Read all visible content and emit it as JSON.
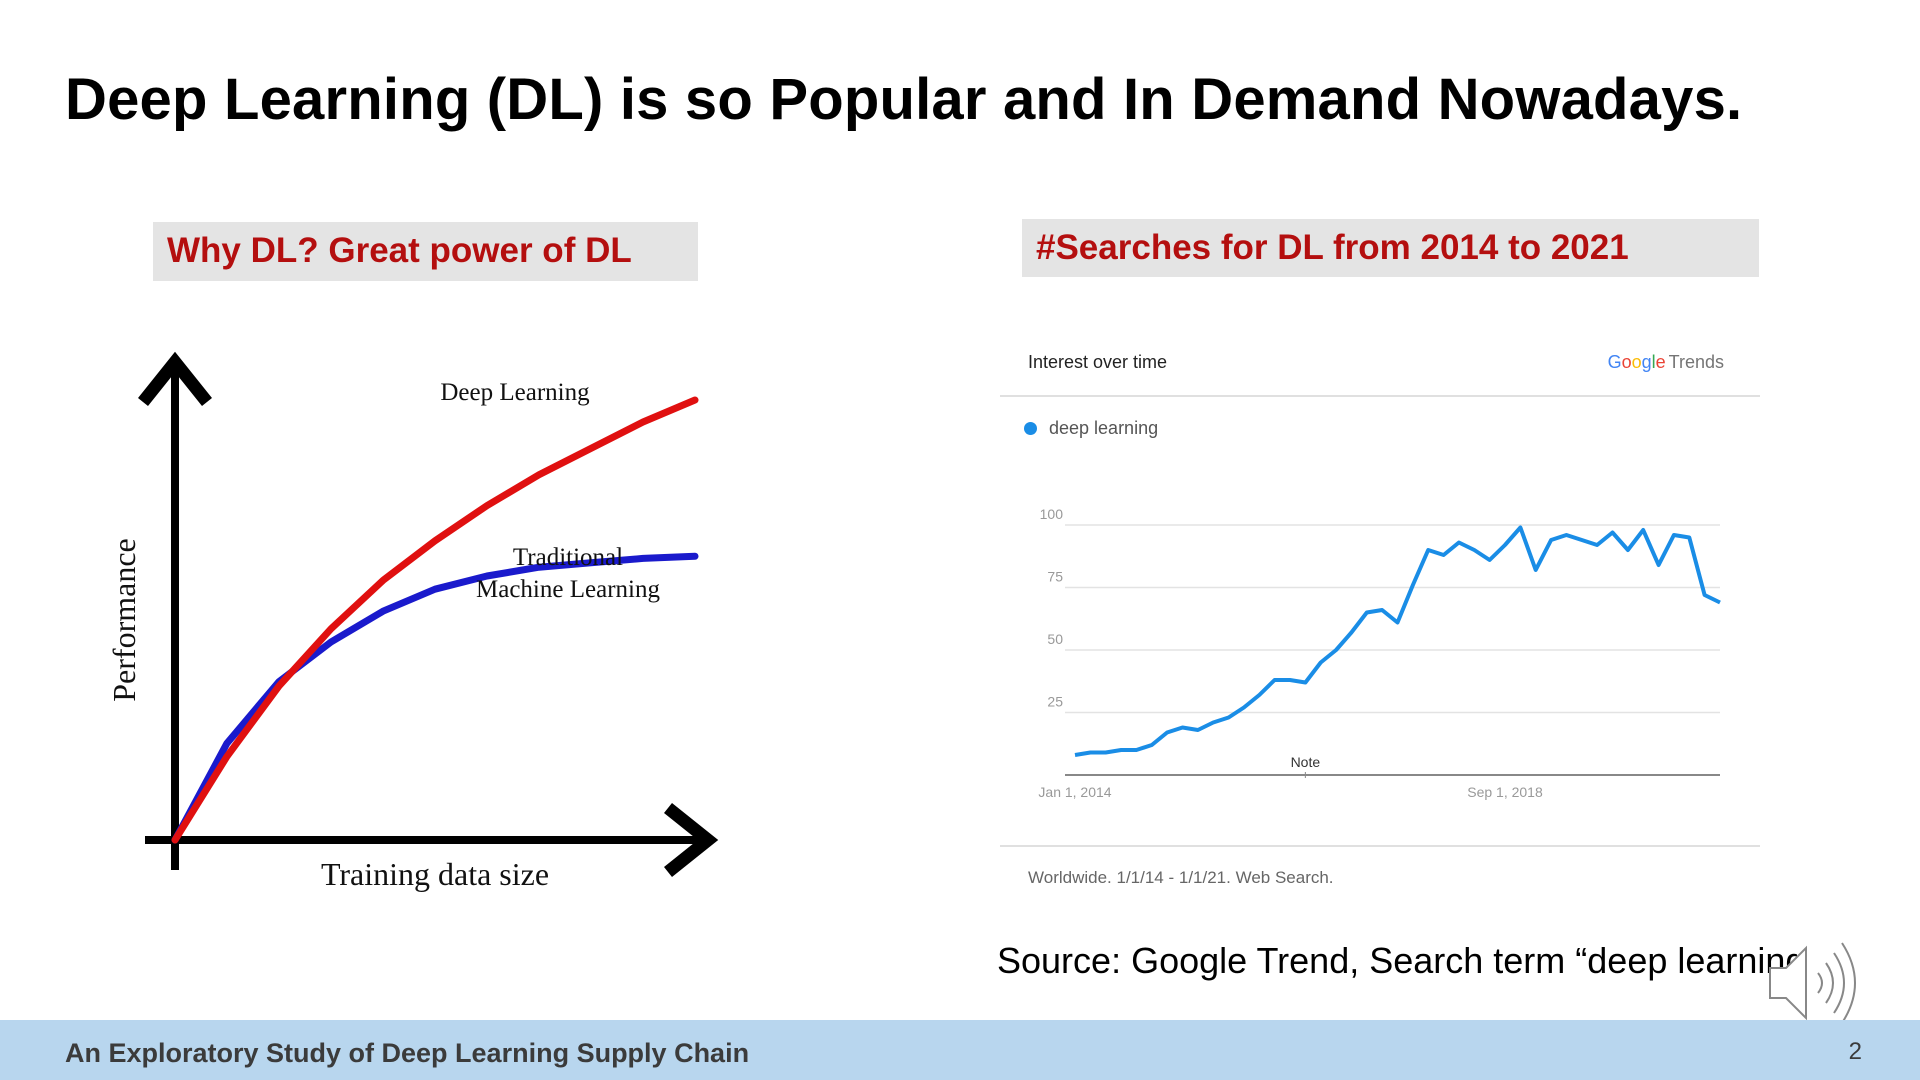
{
  "slide": {
    "title": "Deep Learning (DL) is so Popular and In Demand Nowadays.",
    "footer_title": "An Exploratory Study of Deep Learning Supply Chain",
    "page_number": "2",
    "source": "Source: Google Trend, Search term “deep learning”"
  },
  "left_panel": {
    "label": "Why DL? Great power of DL"
  },
  "right_panel": {
    "label": "#Searches for DL from 2014 to 2021",
    "header": "Interest over time",
    "logo": {
      "g": "G",
      "o1": "o",
      "o2": "o",
      "g2": "g",
      "l": "l",
      "e": "e",
      "trends": "Trends"
    },
    "footnote": "Worldwide. 1/1/14 - 1/1/21. Web Search."
  },
  "colors": {
    "deep_learning_curve": "#e01010",
    "traditional_ml_curve": "#1a1acc",
    "trend_line": "#1a8de6",
    "label_text": "#b40f0f",
    "label_bg": "#e4e4e4",
    "footer_bg": "#b8d6ee"
  },
  "icons": {
    "speaker": "speaker-icon"
  },
  "chart_data": [
    {
      "type": "line",
      "title": "",
      "xlabel": "Training data size",
      "ylabel": "Performance",
      "series": [
        {
          "name": "Deep Learning",
          "x": [
            0,
            0.1,
            0.2,
            0.3,
            0.4,
            0.5,
            0.6,
            0.7,
            0.8,
            0.9,
            1.0
          ],
          "values": [
            0,
            0.19,
            0.35,
            0.48,
            0.59,
            0.68,
            0.76,
            0.83,
            0.89,
            0.95,
            1.0
          ]
        },
        {
          "name": "Traditional Machine Learning",
          "x": [
            0,
            0.1,
            0.2,
            0.3,
            0.4,
            0.5,
            0.6,
            0.7,
            0.8,
            0.9,
            1.0
          ],
          "values": [
            0,
            0.22,
            0.36,
            0.45,
            0.52,
            0.57,
            0.6,
            0.62,
            0.63,
            0.64,
            0.645
          ]
        }
      ],
      "series_label_lines": {
        "Deep Learning": [
          "Deep Learning"
        ],
        "Traditional Machine Learning": [
          "Traditional",
          "Machine Learning"
        ]
      },
      "grid": false
    },
    {
      "type": "line",
      "title": "Interest over time",
      "xlabel": "",
      "ylabel": "",
      "x_tick_labels": [
        "Jan 1, 2014",
        "Sep 1, 2018"
      ],
      "y_ticks": [
        25,
        50,
        75,
        100
      ],
      "ylim": [
        0,
        100
      ],
      "xlim": [
        "2014-01",
        "2021-01"
      ],
      "annotation": "Note",
      "annotation_x": "2016-07",
      "legend": "top-left",
      "grid": true,
      "series": [
        {
          "name": "deep learning",
          "x": [
            "2014-01",
            "2014-03",
            "2014-05",
            "2014-07",
            "2014-09",
            "2014-11",
            "2015-01",
            "2015-03",
            "2015-05",
            "2015-07",
            "2015-09",
            "2015-11",
            "2016-01",
            "2016-03",
            "2016-05",
            "2016-07",
            "2016-09",
            "2016-11",
            "2017-01",
            "2017-03",
            "2017-05",
            "2017-07",
            "2017-09",
            "2017-11",
            "2018-01",
            "2018-03",
            "2018-05",
            "2018-07",
            "2018-09",
            "2018-11",
            "2019-01",
            "2019-03",
            "2019-05",
            "2019-07",
            "2019-09",
            "2019-11",
            "2020-01",
            "2020-03",
            "2020-05",
            "2020-07",
            "2020-09",
            "2020-11",
            "2021-01"
          ],
          "values": [
            8,
            9,
            9,
            10,
            10,
            12,
            17,
            19,
            18,
            21,
            23,
            27,
            32,
            38,
            38,
            37,
            45,
            50,
            57,
            65,
            66,
            61,
            76,
            90,
            88,
            93,
            90,
            86,
            92,
            99,
            82,
            94,
            96,
            94,
            92,
            97,
            90,
            98,
            84,
            96,
            95,
            72,
            69
          ]
        }
      ]
    }
  ]
}
